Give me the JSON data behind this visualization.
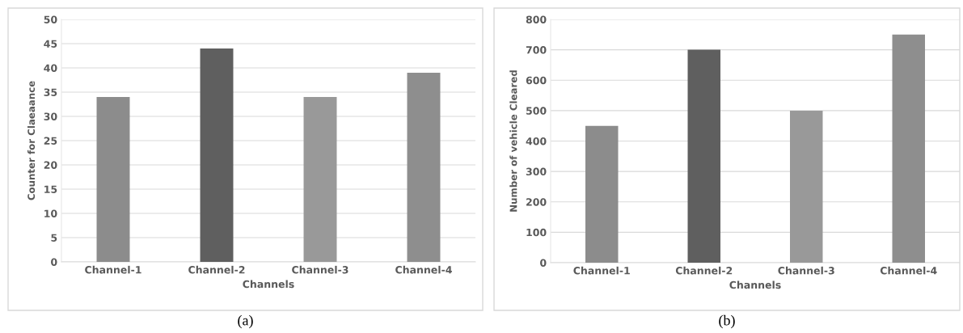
{
  "chart_data": [
    {
      "type": "bar",
      "categories": [
        "Channel-1",
        "Channel-2",
        "Channel-3",
        "Channel-4"
      ],
      "values": [
        34,
        44,
        34,
        39
      ],
      "colors": [
        "#8c8c8c",
        "#5f5f5f",
        "#999999",
        "#8e8e8e"
      ],
      "xlabel": "Channels",
      "ylabel": "Counter for Claeaance",
      "ylim": [
        0,
        50
      ],
      "yticks": [
        0,
        5,
        10,
        15,
        20,
        25,
        30,
        35,
        40,
        45,
        50
      ],
      "grid": "y",
      "annotations": [
        "(a)"
      ]
    },
    {
      "type": "bar",
      "categories": [
        "Channel-1",
        "Channel-2",
        "Channel-3",
        "Channel-4"
      ],
      "values": [
        450,
        700,
        500,
        750
      ],
      "colors": [
        "#8c8c8c",
        "#5f5f5f",
        "#999999",
        "#8e8e8e"
      ],
      "xlabel": "Channels",
      "ylabel": "Number of vehicle Cleared",
      "ylim": [
        0,
        800
      ],
      "yticks": [
        0,
        100,
        200,
        300,
        400,
        500,
        600,
        700,
        800
      ],
      "grid": "y",
      "annotations": [
        "(b)"
      ]
    }
  ]
}
